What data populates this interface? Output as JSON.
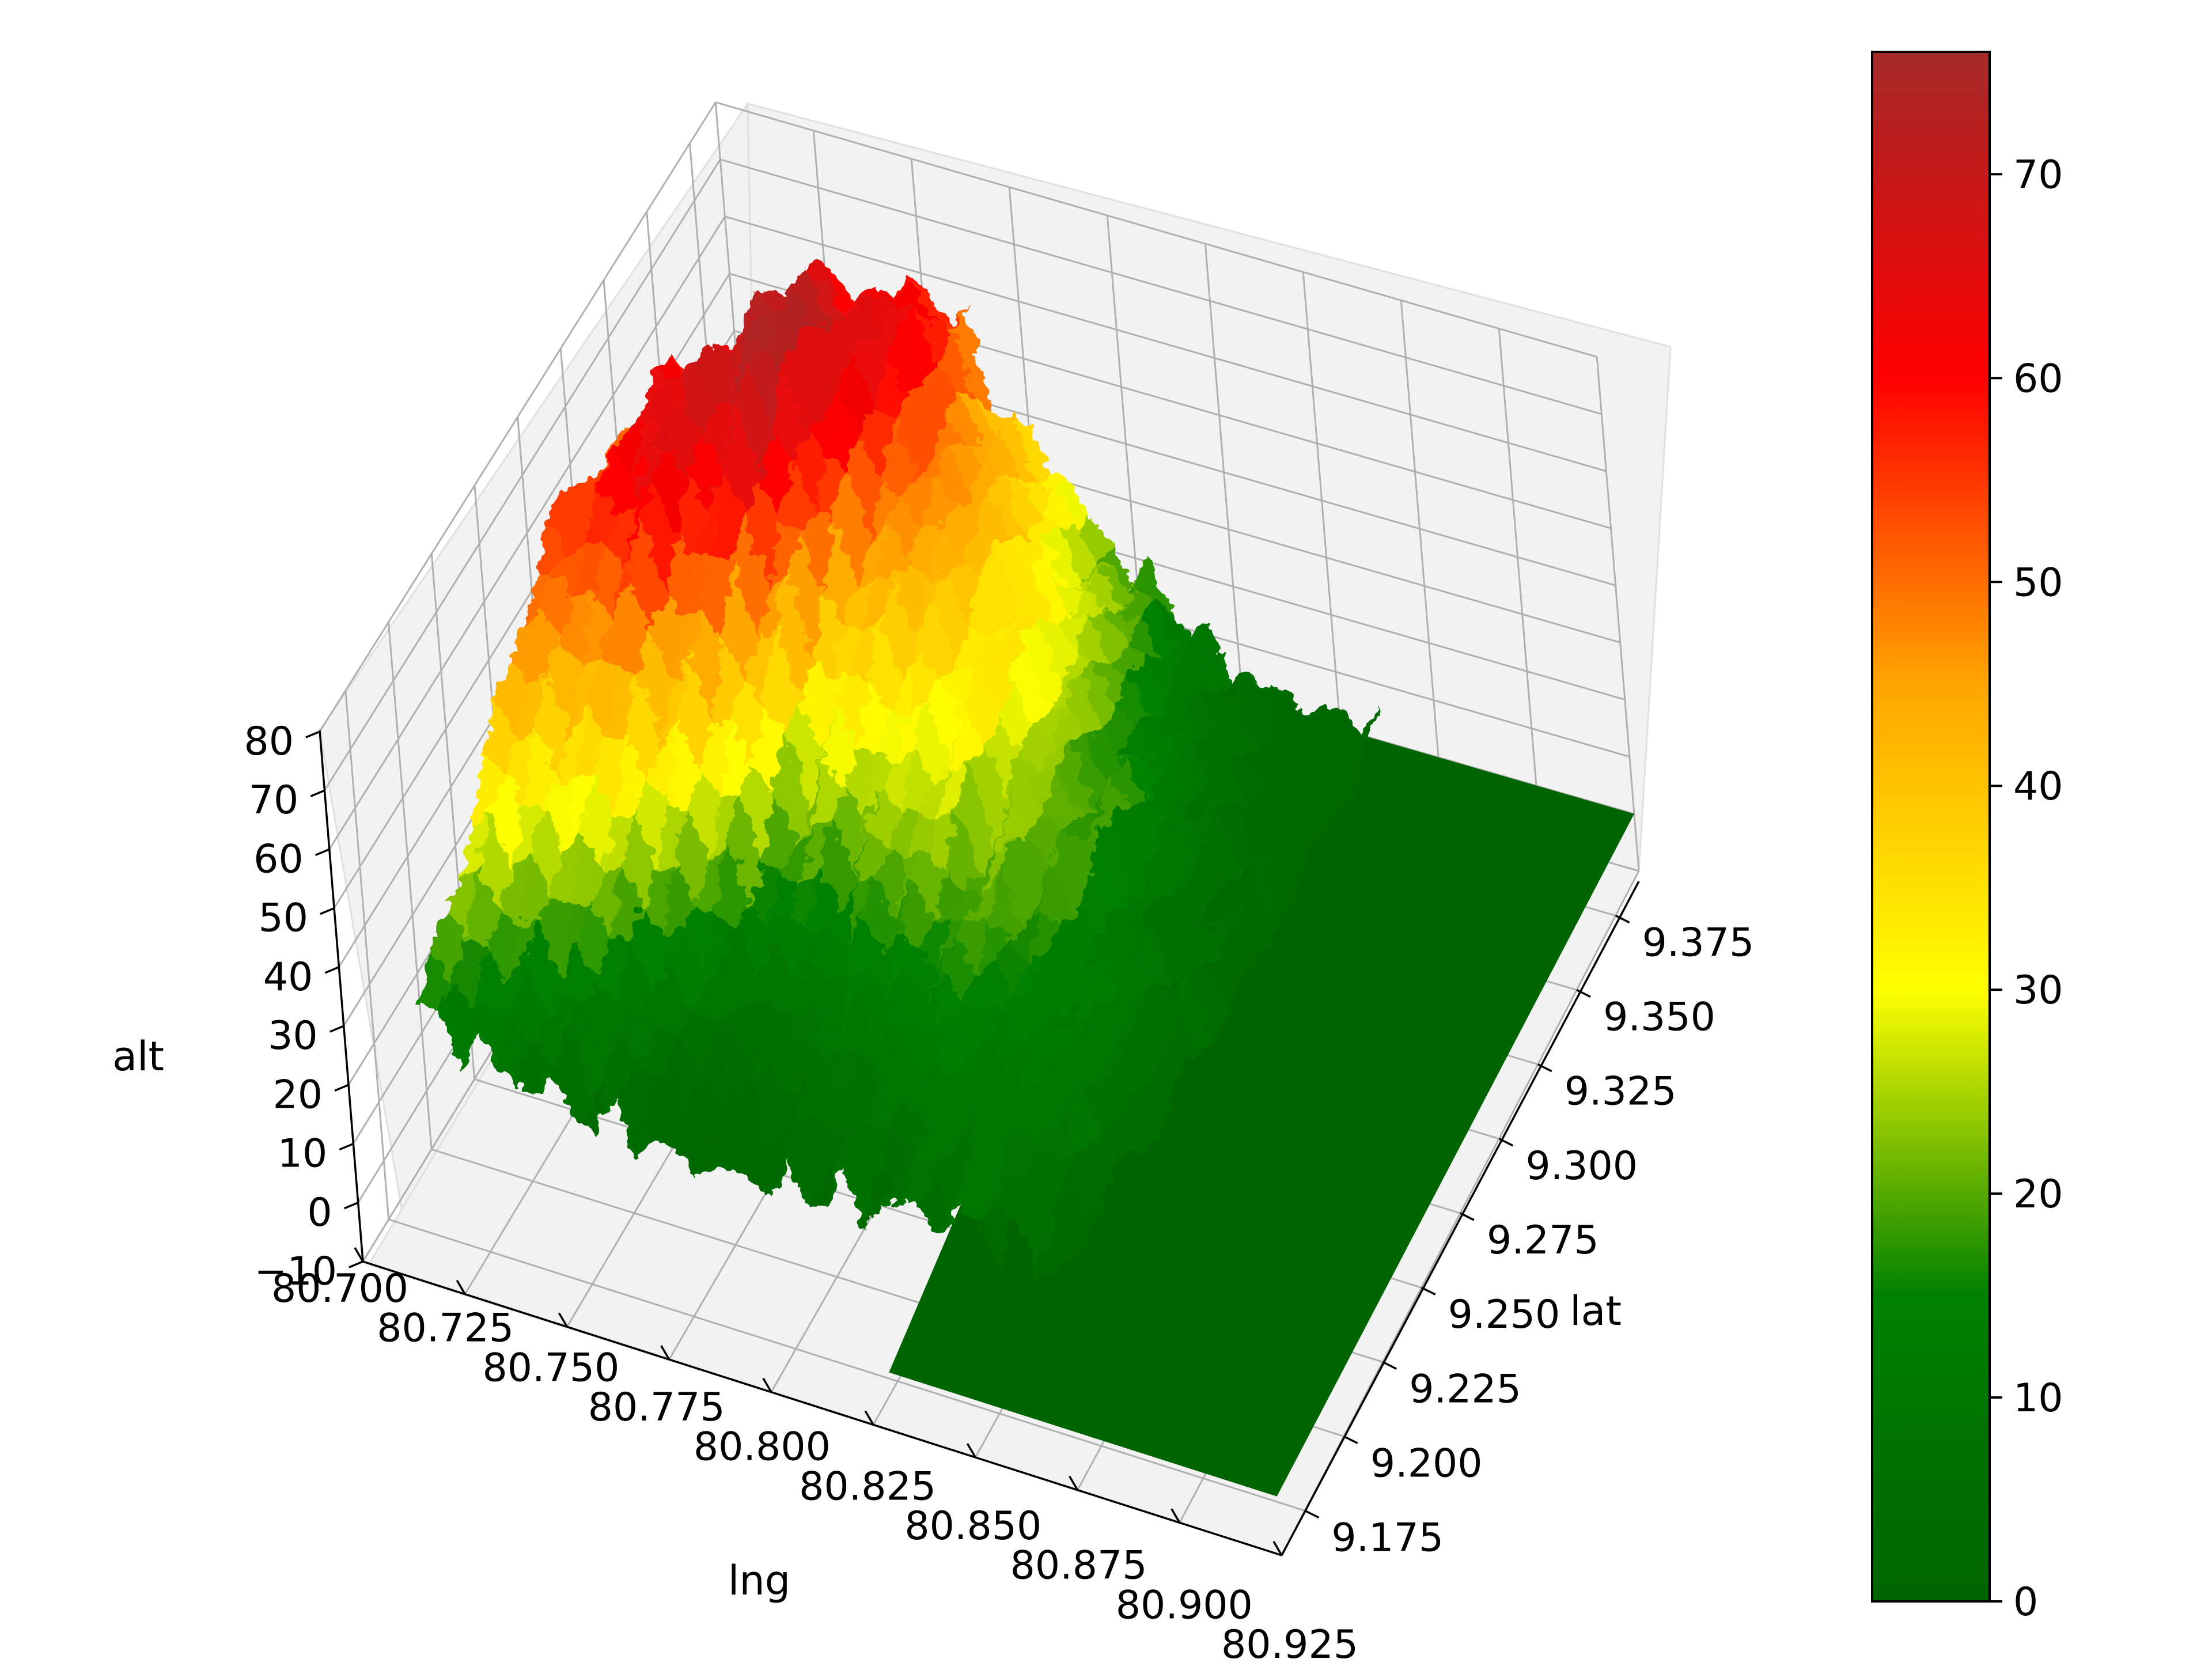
{
  "chart_data": {
    "type": "surface3d",
    "title": "",
    "xlabel": "lng",
    "ylabel": "lat",
    "zlabel": "alt",
    "x_ticks": [
      "80.700",
      "80.725",
      "80.750",
      "80.775",
      "80.800",
      "80.825",
      "80.850",
      "80.875",
      "80.900",
      "80.925"
    ],
    "y_ticks": [
      "9.175",
      "9.200",
      "9.225",
      "9.250",
      "9.275",
      "9.300",
      "9.325",
      "9.350",
      "9.375"
    ],
    "z_ticks": [
      "−10",
      "0",
      "10",
      "20",
      "30",
      "40",
      "50",
      "60",
      "70",
      "80"
    ],
    "xlim": [
      80.7,
      80.925
    ],
    "ylim": [
      9.16,
      9.39
    ],
    "zlim": [
      -10,
      80
    ],
    "grid": true,
    "colormap": {
      "name": "green-yellow-red",
      "stops": [
        {
          "value": 0,
          "color": "#006400"
        },
        {
          "value": 15,
          "color": "#008000"
        },
        {
          "value": 30,
          "color": "#ffff00"
        },
        {
          "value": 45,
          "color": "#ffa500"
        },
        {
          "value": 60,
          "color": "#ff0000"
        },
        {
          "value": 76,
          "color": "#a52a2a"
        }
      ],
      "range": [
        0,
        76
      ]
    },
    "colorbar": {
      "ticks": [
        "0",
        "10",
        "20",
        "30",
        "40",
        "50",
        "60",
        "70"
      ],
      "tick_values": [
        0,
        10,
        20,
        30,
        40,
        50,
        60,
        70
      ],
      "range": [
        0,
        76
      ]
    },
    "surface": {
      "description_fields": [
        "lng",
        "lat",
        "alt"
      ],
      "profile_columns_lng": [
        80.7,
        80.725,
        80.75,
        80.775,
        80.8,
        80.825,
        80.85
      ],
      "ridge_points": [
        {
          "lng": 80.7,
          "lat": 9.3,
          "alt": 58
        },
        {
          "lng": 80.72,
          "lat": 9.32,
          "alt": 68
        },
        {
          "lng": 80.735,
          "lat": 9.34,
          "alt": 75
        },
        {
          "lng": 80.75,
          "lat": 9.36,
          "alt": 66
        },
        {
          "lng": 80.77,
          "lat": 9.35,
          "alt": 48
        },
        {
          "lng": 80.79,
          "lat": 9.33,
          "alt": 35
        },
        {
          "lng": 80.81,
          "lat": 9.3,
          "alt": 22
        },
        {
          "lng": 80.83,
          "lat": 9.26,
          "alt": 12
        },
        {
          "lng": 80.85,
          "lat": 9.23,
          "alt": 5
        },
        {
          "lng": 80.87,
          "lat": 9.2,
          "alt": 1
        }
      ],
      "flat_region": {
        "lng_min": 80.83,
        "lng_max": 80.925,
        "alt": 0
      }
    }
  }
}
